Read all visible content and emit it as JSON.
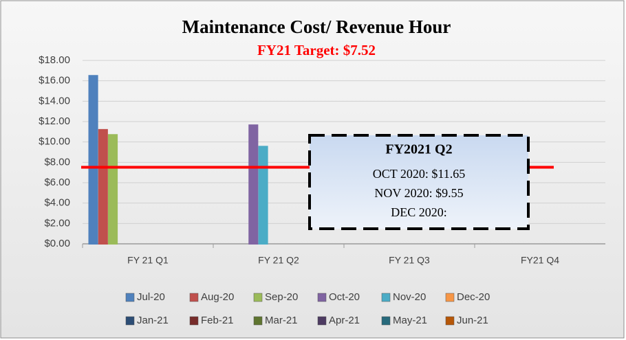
{
  "chart_data": {
    "type": "bar",
    "title": "Maintenance Cost/ Revenue Hour",
    "subtitle": "FY21 Target: $7.52",
    "target_line": 7.52,
    "target_color": "#ff0000",
    "categories": [
      "FY 21 Q1",
      "FY 21 Q2",
      "FY 21 Q3",
      "FY21 Q4"
    ],
    "series": [
      {
        "name": "Jul-20",
        "color": "#4f81bd",
        "values": [
          16.5,
          null,
          null,
          null
        ]
      },
      {
        "name": "Aug-20",
        "color": "#c0504d",
        "values": [
          11.2,
          null,
          null,
          null
        ]
      },
      {
        "name": "Sep-20",
        "color": "#9bbb59",
        "values": [
          10.7,
          null,
          null,
          null
        ]
      },
      {
        "name": "Oct-20",
        "color": "#8064a2",
        "values": [
          null,
          11.65,
          null,
          null
        ]
      },
      {
        "name": "Nov-20",
        "color": "#4bacc6",
        "values": [
          null,
          9.55,
          null,
          null
        ]
      },
      {
        "name": "Dec-20",
        "color": "#f79646",
        "values": [
          null,
          0,
          null,
          null
        ]
      },
      {
        "name": "Jan-21",
        "color": "#2c4d75",
        "values": [
          null,
          null,
          0,
          null
        ]
      },
      {
        "name": "Feb-21",
        "color": "#772c2a",
        "values": [
          null,
          null,
          0,
          null
        ]
      },
      {
        "name": "Mar-21",
        "color": "#5f7530",
        "values": [
          null,
          null,
          0,
          null
        ]
      },
      {
        "name": "Apr-21",
        "color": "#4d3b62",
        "values": [
          null,
          null,
          null,
          0
        ]
      },
      {
        "name": "May-21",
        "color": "#276a7c",
        "values": [
          null,
          null,
          null,
          0
        ]
      },
      {
        "name": "Jun-21",
        "color": "#b65708",
        "values": [
          null,
          null,
          null,
          0
        ]
      }
    ],
    "ylim": [
      0,
      18
    ],
    "yticks": [
      {
        "value": 0,
        "label": "$0.00"
      },
      {
        "value": 2,
        "label": "$2.00"
      },
      {
        "value": 4,
        "label": "$4.00"
      },
      {
        "value": 6,
        "label": "$6.00"
      },
      {
        "value": 8,
        "label": "$8.00"
      },
      {
        "value": 10,
        "label": "$10.00"
      },
      {
        "value": 12,
        "label": "$12.00"
      },
      {
        "value": 14,
        "label": "$14.00"
      },
      {
        "value": 16,
        "label": "$16.00"
      },
      {
        "value": 18,
        "label": "$18.00"
      }
    ],
    "grid": true,
    "legend": "bottom",
    "annotation": {
      "title": "FY2021 Q2",
      "lines": [
        "OCT 2020: $11.65",
        "NOV 2020: $9.55",
        "DEC 2020:"
      ]
    }
  }
}
